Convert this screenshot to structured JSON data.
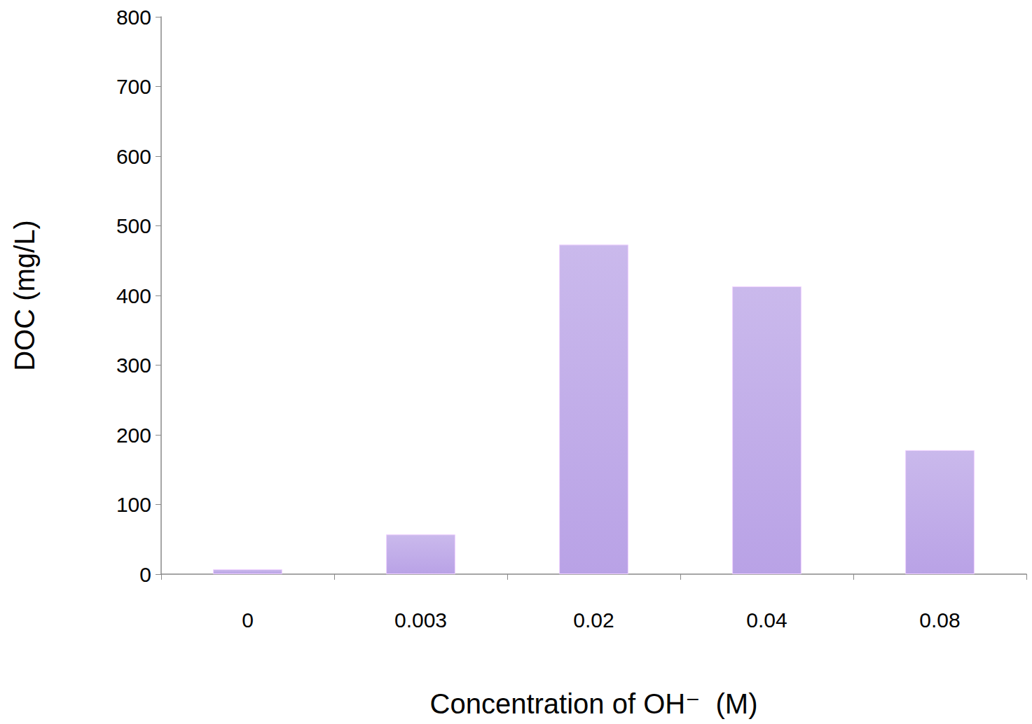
{
  "chart_data": {
    "type": "bar",
    "x_label": "Concentration of OH⁻  (M)",
    "y_label": "DOC (mg/L)",
    "categories": [
      "0",
      "0.003",
      "0.02",
      "0.04",
      "0.08"
    ],
    "values": [
      7,
      57,
      473,
      413,
      178
    ],
    "color": "#b9a2e6",
    "ylim": [
      0,
      800
    ],
    "yticks": [
      0,
      100,
      200,
      300,
      400,
      500,
      600,
      700,
      800
    ],
    "grid": false
  }
}
